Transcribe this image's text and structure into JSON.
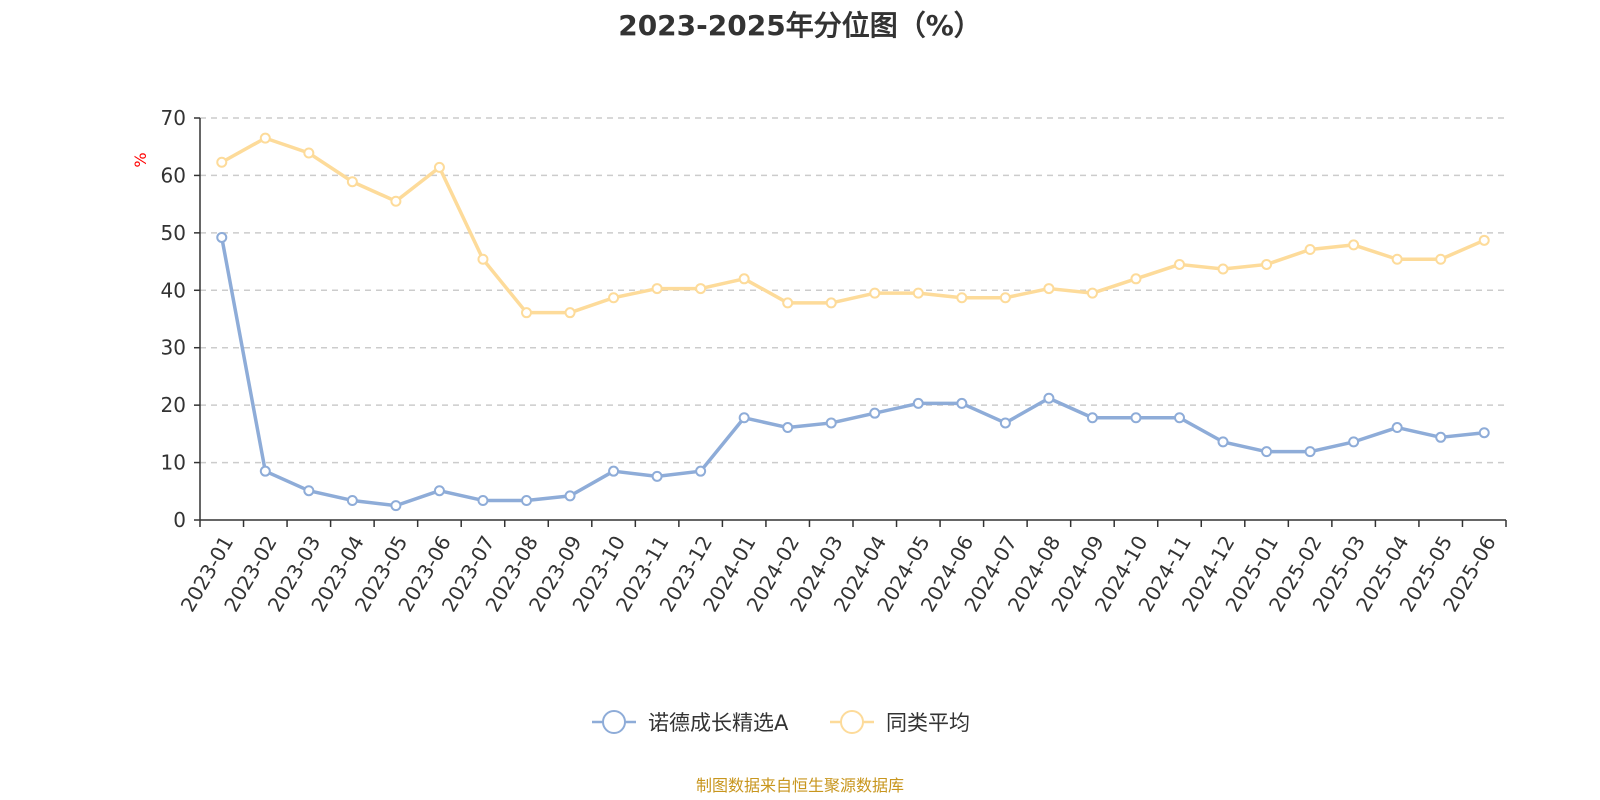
{
  "colors": {
    "series1": "#8eacd8",
    "series2": "#fddb9a",
    "axis": "#333333",
    "grid": "#cccccc",
    "unit": "#ff0000",
    "source": "#c8961e"
  },
  "source": "制图数据来自恒生聚源数据库",
  "chart_data": {
    "type": "line",
    "title": "2023-2025年分位图（%）",
    "xlabel": "",
    "ylabel": "%",
    "ylim": [
      0,
      70
    ],
    "yticks": [
      0,
      10,
      20,
      30,
      40,
      50,
      60,
      70
    ],
    "grid": true,
    "legend_position": "bottom-center",
    "categories": [
      "2023-01",
      "2023-02",
      "2023-03",
      "2023-04",
      "2023-05",
      "2023-06",
      "2023-07",
      "2023-08",
      "2023-09",
      "2023-10",
      "2023-11",
      "2023-12",
      "2024-01",
      "2024-02",
      "2024-03",
      "2024-04",
      "2024-05",
      "2024-06",
      "2024-07",
      "2024-08",
      "2024-09",
      "2024-10",
      "2024-11",
      "2024-12",
      "2025-01",
      "2025-02",
      "2025-03",
      "2025-04",
      "2025-05",
      "2025-06"
    ],
    "series": [
      {
        "name": "诺德成长精选A",
        "values": [
          49.2,
          8.5,
          5.1,
          3.4,
          2.5,
          5.1,
          3.4,
          3.4,
          4.2,
          8.5,
          7.6,
          8.5,
          17.8,
          16.1,
          16.9,
          18.6,
          20.3,
          20.3,
          16.9,
          21.2,
          17.8,
          17.8,
          17.8,
          13.6,
          11.9,
          11.9,
          13.6,
          16.1,
          14.4,
          15.2
        ]
      },
      {
        "name": "同类平均",
        "values": [
          62.3,
          66.5,
          63.9,
          58.9,
          55.5,
          61.4,
          45.4,
          36.1,
          36.1,
          38.7,
          40.3,
          40.3,
          42.0,
          37.8,
          37.8,
          39.5,
          39.5,
          38.7,
          38.7,
          40.3,
          39.5,
          42.0,
          44.5,
          43.7,
          44.5,
          47.1,
          47.9,
          45.4,
          45.4,
          48.7
        ]
      }
    ]
  }
}
